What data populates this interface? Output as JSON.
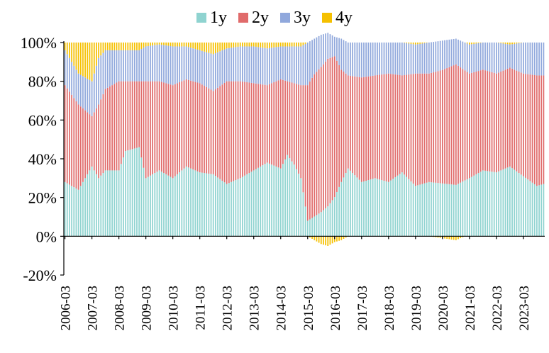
{
  "chart_data": {
    "type": "bar",
    "stacked": true,
    "title": "",
    "xlabel": "",
    "ylabel": "",
    "ylim": [
      -20,
      100
    ],
    "y_ticks": [
      "100%",
      "80%",
      "60%",
      "40%",
      "20%",
      "0%",
      "-20%"
    ],
    "x_ticks": [
      "2006-03",
      "2007-03",
      "2008-03",
      "2009-03",
      "2010-03",
      "2011-03",
      "2012-03",
      "2013-03",
      "2014-03",
      "2015-03",
      "2016-03",
      "2017-03",
      "2018-03",
      "2019-03",
      "2020-03",
      "2021-03",
      "2022-03",
      "2023-03"
    ],
    "x_range": [
      "2006-03",
      "2023-12"
    ],
    "legend_position": "top",
    "grid": false,
    "colors": {
      "1y": "#8fd3d0",
      "2y": "#e06b6b",
      "3y": "#90a8dc",
      "4y": "#f5c000"
    },
    "legend": [
      {
        "label": "1y",
        "color": "#8fd3d0"
      },
      {
        "label": "2y",
        "color": "#e06b6b"
      },
      {
        "label": "3y",
        "color": "#90a8dc"
      },
      {
        "label": "4y",
        "color": "#f5c000"
      }
    ],
    "series_anchors": {
      "dates": [
        "2006-03",
        "2006-09",
        "2007-03",
        "2007-06",
        "2007-09",
        "2008-03",
        "2008-06",
        "2008-12",
        "2009-03",
        "2009-09",
        "2010-03",
        "2010-09",
        "2011-03",
        "2011-09",
        "2012-03",
        "2012-09",
        "2013-03",
        "2013-09",
        "2014-03",
        "2014-06",
        "2014-09",
        "2014-12",
        "2015-03",
        "2015-06",
        "2015-09",
        "2015-12",
        "2016-03",
        "2016-06",
        "2016-09",
        "2017-03",
        "2017-09",
        "2018-03",
        "2018-09",
        "2019-03",
        "2019-09",
        "2020-03",
        "2020-09",
        "2021-03",
        "2021-09",
        "2022-03",
        "2022-09",
        "2023-03",
        "2023-09",
        "2023-12"
      ],
      "1y": [
        28,
        24,
        36,
        30,
        34,
        34,
        44,
        46,
        30,
        34,
        30,
        36,
        33,
        32,
        27,
        30,
        34,
        38,
        35,
        42,
        37,
        30,
        8,
        10,
        12,
        15,
        20,
        28,
        35,
        28,
        30,
        28,
        33,
        26,
        28,
        27,
        26,
        30,
        34,
        33,
        36,
        31,
        26,
        27
      ],
      "2y": [
        50,
        44,
        26,
        38,
        42,
        46,
        36,
        34,
        50,
        46,
        48,
        45,
        46,
        43,
        53,
        50,
        45,
        40,
        46,
        38,
        42,
        48,
        70,
        72,
        72,
        74,
        72,
        58,
        48,
        54,
        53,
        56,
        50,
        58,
        56,
        58,
        61,
        54,
        52,
        51,
        51,
        53,
        57,
        56
      ],
      "3y": [
        18,
        16,
        18,
        24,
        20,
        16,
        16,
        16,
        18,
        19,
        20,
        17,
        17,
        19,
        17,
        18,
        19,
        19,
        17,
        18,
        19,
        20,
        22,
        18,
        16,
        13,
        10,
        16,
        17,
        18,
        17,
        16,
        17,
        15,
        16,
        15,
        13,
        15,
        14,
        16,
        12,
        16,
        17,
        17
      ],
      "4y": [
        4,
        16,
        20,
        8,
        4,
        4,
        4,
        4,
        2,
        1,
        2,
        2,
        4,
        6,
        3,
        2,
        2,
        3,
        2,
        2,
        2,
        2,
        0,
        -2,
        -4,
        -5,
        -3,
        -2,
        0,
        0,
        0,
        0,
        0,
        1,
        0,
        -1,
        -2,
        1,
        0,
        0,
        1,
        0,
        0,
        0
      ]
    }
  }
}
